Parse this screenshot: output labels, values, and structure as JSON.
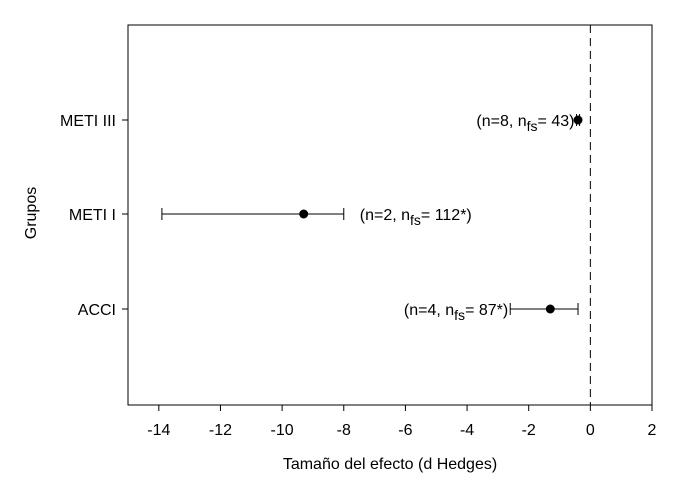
{
  "chart_data": {
    "type": "scatter",
    "title": "",
    "xlabel": "Tamaño del efecto (d Hedges)",
    "ylabel": "Grupos",
    "xlim": [
      -15,
      2
    ],
    "xticks": [
      -14,
      -12,
      -10,
      -8,
      -6,
      -4,
      -2,
      0,
      2
    ],
    "reference_line_x": 0,
    "reference_line_style": "dashed",
    "grid": false,
    "groups": [
      {
        "label": "METI III",
        "estimate": -0.4,
        "ci_low": -0.45,
        "ci_high": -0.35,
        "annotation_pre": "(n=8, n",
        "annotation_sub": "fs",
        "annotation_post": "= 43)"
      },
      {
        "label": "METI I",
        "estimate": -9.3,
        "ci_low": -13.9,
        "ci_high": -8.0,
        "annotation_pre": "(n=2, n",
        "annotation_sub": "fs",
        "annotation_post": "= 112*)"
      },
      {
        "label": "ACCI",
        "estimate": -1.3,
        "ci_low": -2.6,
        "ci_high": -0.4,
        "annotation_pre": "(n=4, n",
        "annotation_sub": "fs",
        "annotation_post": "= 87*)"
      }
    ]
  }
}
